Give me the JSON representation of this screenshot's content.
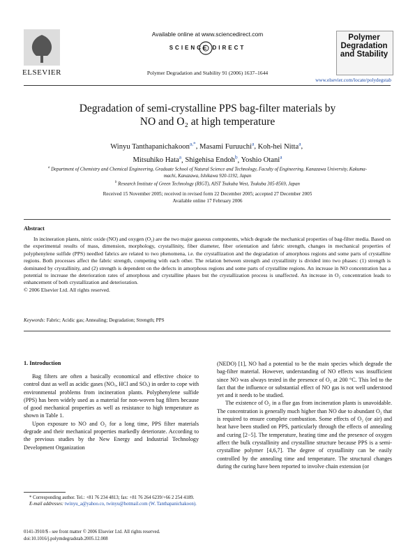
{
  "header": {
    "available": "Available online at www.sciencedirect.com",
    "sd_logo": "SCIENCE DIRECT",
    "publisher": "ELSEVIER",
    "citation": "Polymer Degradation and Stability 91 (2006) 1637–1644",
    "journal": "Polymer Degradation and Stability",
    "url": "www.elsevier.com/locate/polydegstab"
  },
  "title": "Degradation of semi-crystalline PPS bag-filter materials by NO and O₂ at high temperature",
  "authors": [
    {
      "name": "Winyu Tanthapanichakoon",
      "sup": "a,*"
    },
    {
      "name": "Masami Furuuchi",
      "sup": "a"
    },
    {
      "name": "Koh-hei Nitta",
      "sup": "a"
    },
    {
      "name": "Mitsuhiko Hata",
      "sup": "a"
    },
    {
      "name": "Shigehisa Endoh",
      "sup": "b"
    },
    {
      "name": "Yoshio Otani",
      "sup": "a"
    }
  ],
  "affiliations": [
    {
      "label": "a",
      "text": "Department of Chemistry and Chemical Engineering, Graduate School of Natural Science and Technology, Faculty of Engineering, Kanazawa University, Kakuma-machi, Kanazawa, Ishikawa 920-1192, Japan"
    },
    {
      "label": "b",
      "text": "Research Institute of Green Technology (RIGT), AIST Tsukuba West, Tsukuba 305-8569, Japan"
    }
  ],
  "dates": {
    "received": "Received 15 November 2005; received in revised form 22 December 2005; accepted 27 December 2005",
    "online": "Available online 17 February 2006"
  },
  "abstract": {
    "heading": "Abstract",
    "text": "In incineration plants, nitric oxide (NO) and oxygen (O₂) are the two major gaseous components, which degrade the mechanical properties of bag-filter media. Based on the experimental results of mass, dimension, morphology, crystallinity, fiber diameter, fiber orientation and fabric strength, changes in mechanical properties of polyphenylene sulfide (PPS) needled fabrics are related to two phenomena, i.e. the crystallization and the degradation of amorphous regions and some parts of crystalline regions. Both processes affect the fabric strength, competing with each other. The relation between strength and crystallinity is divided into two phases: (1) strength is dominated by crystallinity, and (2) strength is dependent on the defects in amorphous regions and some parts of crystalline regions. An increase in NO concentration has a potential to increase the deterioration rates of amorphous and crystalline phases but the crystallization process is unaffected. An increase in O₂ concentration leads to enhancement of both crystallization and deterioration.",
    "copyright": "© 2006 Elsevier Ltd. All rights reserved."
  },
  "keywords": {
    "label": "Keywords:",
    "text": "Fabric; Acidic gas; Annealing; Degradation; Strength; PPS"
  },
  "section": {
    "heading": "1. Introduction",
    "left": [
      "Bag filters are often a basically economical and effective choice to control dust as well as acidic gases (NOₓ, HCl and SOₓ) in order to cope with environmental problems from incineration plants. Polyphenylene sulfide (PPS) has been widely used as a material for non-woven bag filters because of good mechanical properties as well as resistance to high temperature as shown in Table 1.",
      "Upon exposure to NO and O₂ for a long time, PPS filter materials degrade and their mechanical properties markedly deteriorate. According to the previous studies by the New Energy and Industrial Technology Development Organization"
    ],
    "right": [
      "(NEDO) [1], NO had a potential to be the main species which degrade the bag-filter material. However, understanding of NO effects was insufficient since NO was always tested in the presence of O₂ at 200 °C. This led to the fact that the influence or substantial effect of NO gas is not well understood yet and it needs to be studied.",
      "The existence of O₂ in a flue gas from incineration plants is unavoidable. The concentration is generally much higher than NO due to abundant O₂ that is required to ensure complete combustion. Some effects of O₂ (or air) and heat have been studied on PPS, particularly through the effects of annealing and curing [2−5]. The temperature, heating time and the presence of oxygen affect the bulk crystallinity and crystalline structure because PPS is a semi-crystalline polymer [4,6,7]. The degree of crystallinity can be easily controlled by the annealing time and temperature. The structural changes during the curing have been reported to involve chain extension (or"
    ]
  },
  "footnotes": {
    "corresponding": "* Corresponding author. Tel.: +81 76 234 4813; fax: +81 76 264 6239/+66 2 254 4189.",
    "email_label": "E-mail addresses:",
    "emails": "twinyu_a@yahoo.co, twinyu@hotmail.com (W. Tanthapanichakoon)."
  },
  "footer": {
    "issn": "0141-3910/$ - see front matter © 2006 Elsevier Ltd. All rights reserved.",
    "doi": "doi:10.1016/j.polymdegradstab.2005.12.008"
  }
}
